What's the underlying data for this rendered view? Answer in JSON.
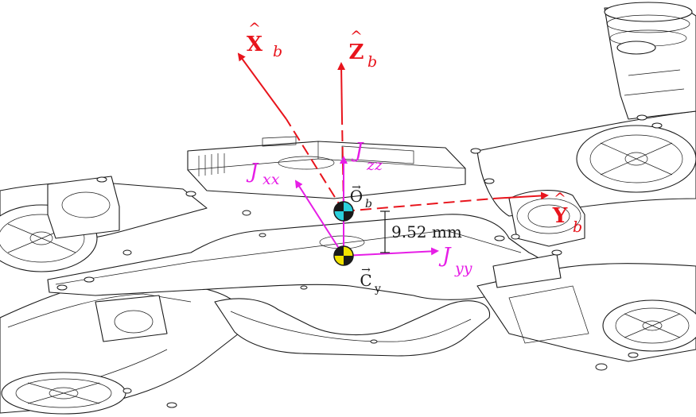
{
  "colors": {
    "body_axes": "#e8141c",
    "inertia_axes": "#e61ee6",
    "origin_marker": "#2ad0dc",
    "cg_marker": "#f2e200",
    "ink": "#1a1a1a"
  },
  "labels": {
    "x_axis": {
      "hat": "X",
      "sub": "b"
    },
    "z_axis": {
      "hat": "Z",
      "sub": "b"
    },
    "y_axis": {
      "hat": "Y",
      "sub": "b"
    },
    "jxx": {
      "main": "J",
      "sub": "xx"
    },
    "jyy": {
      "main": "J",
      "sub": "yy"
    },
    "jzz": {
      "main": "J",
      "sub": "zz"
    },
    "origin": {
      "main": "O",
      "sub": "b"
    },
    "cg": {
      "main": "C",
      "sub": "y"
    },
    "distance": "9.52 mm"
  },
  "icons": {
    "origin_marker": "quartered-circle-cyan-icon",
    "cg_marker": "quartered-circle-yellow-icon"
  }
}
